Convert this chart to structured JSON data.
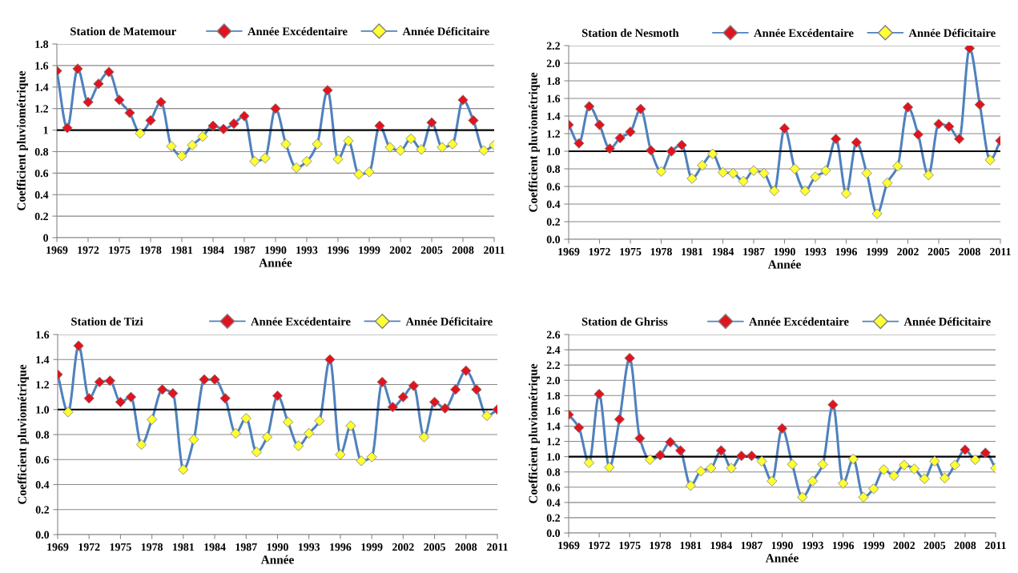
{
  "chart_data": [
    {
      "type": "line",
      "title": "Station de Matemour",
      "xlabel": "Année",
      "ylabel": "Coefficient pluviométrique",
      "marker": "diamond",
      "grid": "y",
      "legend": "top",
      "x": [
        1969,
        1970,
        1971,
        1972,
        1973,
        1974,
        1975,
        1976,
        1977,
        1978,
        1979,
        1980,
        1981,
        1982,
        1983,
        1984,
        1985,
        1986,
        1987,
        1988,
        1989,
        1990,
        1991,
        1992,
        1993,
        1994,
        1995,
        1996,
        1997,
        1998,
        1999,
        2000,
        2001,
        2002,
        2003,
        2004,
        2005,
        2006,
        2007,
        2008,
        2009,
        2010,
        2011
      ],
      "xlim": [
        1969,
        2011
      ],
      "xticks": [
        1969,
        1972,
        1975,
        1978,
        1981,
        1984,
        1987,
        1990,
        1993,
        1996,
        1999,
        2002,
        2005,
        2008,
        2011
      ],
      "ylim": [
        0,
        1.8
      ],
      "yticks": [
        0,
        0.2,
        0.4,
        0.6,
        0.8,
        1,
        1.2,
        1.4,
        1.6,
        1.8
      ],
      "ref_lines": [
        {
          "axis": "y",
          "value": 1,
          "color": "#000000"
        }
      ],
      "series": [
        {
          "marker": "none",
          "color": "#4f81bd",
          "values": [
            1.55,
            1.02,
            1.57,
            1.26,
            1.43,
            1.54,
            1.28,
            1.16,
            0.97,
            1.09,
            1.26,
            0.85,
            0.76,
            0.86,
            0.94,
            1.04,
            1.01,
            1.06,
            1.13,
            0.71,
            0.74,
            1.2,
            0.87,
            0.65,
            0.71,
            0.87,
            1.37,
            0.73,
            0.9,
            0.59,
            0.61,
            1.04,
            0.84,
            0.81,
            0.92,
            0.82,
            1.07,
            0.84,
            0.87,
            1.28,
            1.09,
            0.81,
            0.86
          ]
        },
        {
          "type": "scatter",
          "name": "Année Excédentaire",
          "color": "#e0141e",
          "values": [
            1.55,
            1.02,
            1.57,
            1.26,
            1.43,
            1.54,
            1.28,
            1.16,
            null,
            1.09,
            1.26,
            null,
            null,
            null,
            null,
            1.04,
            1.01,
            1.06,
            1.13,
            null,
            null,
            1.2,
            null,
            null,
            null,
            null,
            1.37,
            null,
            null,
            null,
            null,
            1.04,
            null,
            null,
            null,
            null,
            1.07,
            null,
            null,
            1.28,
            1.09,
            null,
            null
          ]
        },
        {
          "type": "scatter",
          "name": "Année Déficitaire",
          "color": "#ffff33",
          "values": [
            null,
            null,
            null,
            null,
            null,
            null,
            null,
            null,
            0.97,
            null,
            null,
            0.85,
            0.76,
            0.86,
            0.94,
            null,
            null,
            null,
            null,
            0.71,
            0.74,
            null,
            0.87,
            0.65,
            0.71,
            0.87,
            null,
            0.73,
            0.9,
            0.59,
            0.61,
            null,
            0.84,
            0.81,
            0.92,
            0.82,
            null,
            0.84,
            0.87,
            null,
            null,
            0.81,
            0.86
          ]
        }
      ]
    },
    {
      "type": "line",
      "title": "Station de Nesmoth",
      "xlabel": "Année",
      "ylabel": "Coefficient pluviométrique",
      "marker": "diamond",
      "grid": "y",
      "legend": "top",
      "x": [
        1969,
        1970,
        1971,
        1972,
        1973,
        1974,
        1975,
        1976,
        1977,
        1978,
        1979,
        1980,
        1981,
        1982,
        1983,
        1984,
        1985,
        1986,
        1987,
        1988,
        1989,
        1990,
        1991,
        1992,
        1993,
        1994,
        1995,
        1996,
        1997,
        1998,
        1999,
        2000,
        2001,
        2002,
        2003,
        2004,
        2005,
        2006,
        2007,
        2008,
        2009,
        2010,
        2011
      ],
      "xlim": [
        1969,
        2011
      ],
      "xticks": [
        1969,
        1972,
        1975,
        1978,
        1981,
        1984,
        1987,
        1990,
        1993,
        1996,
        1999,
        2002,
        2005,
        2008,
        2011
      ],
      "ylim": [
        0,
        2.2
      ],
      "yticks": [
        {
          "value": 0,
          "label": "0.0"
        },
        0.2,
        0.4,
        0.6,
        0.8,
        {
          "value": 1,
          "label": "1.0"
        },
        1.2,
        1.4,
        1.6,
        1.8,
        {
          "value": 2,
          "label": "2.0"
        },
        2.2
      ],
      "ref_lines": [
        {
          "axis": "y",
          "value": 1,
          "color": "#000000"
        }
      ],
      "series": [
        {
          "marker": "none",
          "color": "#4f81bd",
          "values": [
            1.3,
            1.09,
            1.51,
            1.3,
            1.03,
            1.15,
            1.22,
            1.48,
            1.01,
            0.77,
            1.0,
            1.07,
            0.69,
            0.84,
            0.97,
            0.76,
            0.75,
            0.66,
            0.78,
            0.75,
            0.55,
            1.26,
            0.8,
            0.55,
            0.71,
            0.78,
            1.14,
            0.52,
            1.1,
            0.75,
            0.29,
            0.64,
            0.83,
            1.5,
            1.19,
            0.73,
            1.31,
            1.28,
            1.14,
            2.17,
            1.53,
            0.9,
            1.12
          ]
        },
        {
          "type": "scatter",
          "name": "Année Excédentaire",
          "color": "#e0141e",
          "values": [
            1.3,
            1.09,
            1.51,
            1.3,
            1.03,
            1.15,
            1.22,
            1.48,
            1.01,
            null,
            1.0,
            1.07,
            null,
            null,
            null,
            null,
            null,
            null,
            null,
            null,
            null,
            1.26,
            null,
            null,
            null,
            null,
            1.14,
            null,
            1.1,
            null,
            null,
            null,
            null,
            1.5,
            1.19,
            null,
            1.31,
            1.28,
            1.14,
            2.17,
            1.53,
            null,
            1.12
          ]
        },
        {
          "type": "scatter",
          "name": "Année Déficitaire",
          "color": "#ffff33",
          "values": [
            null,
            null,
            null,
            null,
            null,
            null,
            null,
            null,
            null,
            0.77,
            null,
            null,
            0.69,
            0.84,
            0.97,
            0.76,
            0.75,
            0.66,
            0.78,
            0.75,
            0.55,
            null,
            0.8,
            0.55,
            0.71,
            0.78,
            null,
            0.52,
            null,
            0.75,
            0.29,
            0.64,
            0.83,
            null,
            null,
            0.73,
            null,
            null,
            null,
            null,
            null,
            0.9,
            null
          ]
        }
      ]
    },
    {
      "type": "line",
      "title": "Station de Tizi",
      "xlabel": "Année",
      "ylabel": "Coefficient pluviométrique",
      "marker": "diamond",
      "grid": "y",
      "legend": "top",
      "x": [
        1969,
        1970,
        1971,
        1972,
        1973,
        1974,
        1975,
        1976,
        1977,
        1978,
        1979,
        1980,
        1981,
        1982,
        1983,
        1984,
        1985,
        1986,
        1987,
        1988,
        1989,
        1990,
        1991,
        1992,
        1993,
        1994,
        1995,
        1996,
        1997,
        1998,
        1999,
        2000,
        2001,
        2002,
        2003,
        2004,
        2005,
        2006,
        2007,
        2008,
        2009,
        2010,
        2011
      ],
      "xlim": [
        1969,
        2011
      ],
      "xticks": [
        1969,
        1972,
        1975,
        1978,
        1981,
        1984,
        1987,
        1990,
        1993,
        1996,
        1999,
        2002,
        2005,
        2008,
        2011
      ],
      "ylim": [
        0,
        1.6
      ],
      "yticks": [
        {
          "value": 0,
          "label": "0.0"
        },
        0.2,
        0.4,
        0.6,
        0.8,
        {
          "value": 1,
          "label": "1.0"
        },
        1.2,
        1.4,
        1.6
      ],
      "ref_lines": [
        {
          "axis": "y",
          "value": 1,
          "color": "#000000"
        }
      ],
      "series": [
        {
          "marker": "none",
          "color": "#4f81bd",
          "values": [
            1.28,
            0.98,
            1.51,
            1.09,
            1.22,
            1.23,
            1.06,
            1.1,
            0.72,
            0.92,
            1.16,
            1.13,
            0.52,
            0.76,
            1.24,
            1.24,
            1.09,
            0.81,
            0.93,
            0.66,
            0.78,
            1.11,
            0.9,
            0.71,
            0.81,
            0.91,
            1.4,
            0.64,
            0.87,
            0.59,
            0.62,
            1.22,
            1.02,
            1.1,
            1.19,
            0.78,
            1.06,
            1.01,
            1.16,
            1.31,
            1.16,
            0.95,
            1.0
          ]
        },
        {
          "type": "scatter",
          "name": "Année Excédentaire",
          "color": "#e0141e",
          "values": [
            1.28,
            null,
            1.51,
            1.09,
            1.22,
            1.23,
            1.06,
            1.1,
            null,
            null,
            1.16,
            1.13,
            null,
            null,
            1.24,
            1.24,
            1.09,
            null,
            null,
            null,
            null,
            1.11,
            null,
            null,
            null,
            null,
            1.4,
            null,
            null,
            null,
            null,
            1.22,
            1.02,
            1.1,
            1.19,
            null,
            1.06,
            1.01,
            1.16,
            1.31,
            1.16,
            null,
            1.0
          ]
        },
        {
          "type": "scatter",
          "name": "Année Déficitaire",
          "color": "#ffff33",
          "values": [
            null,
            0.98,
            null,
            null,
            null,
            null,
            null,
            null,
            0.72,
            0.92,
            null,
            null,
            0.52,
            0.76,
            null,
            null,
            null,
            0.81,
            0.93,
            0.66,
            0.78,
            null,
            0.9,
            0.71,
            0.81,
            0.91,
            null,
            0.64,
            0.87,
            0.59,
            0.62,
            null,
            null,
            null,
            null,
            0.78,
            null,
            null,
            null,
            null,
            null,
            0.95,
            null
          ]
        }
      ]
    },
    {
      "type": "line",
      "title": "Station de Ghriss",
      "xlabel": "Année",
      "ylabel": "Coefficient pluviométrique",
      "marker": "diamond",
      "grid": "y",
      "legend": "top",
      "x": [
        1969,
        1970,
        1971,
        1972,
        1973,
        1974,
        1975,
        1976,
        1977,
        1978,
        1979,
        1980,
        1981,
        1982,
        1983,
        1984,
        1985,
        1986,
        1987,
        1988,
        1989,
        1990,
        1991,
        1992,
        1993,
        1994,
        1995,
        1996,
        1997,
        1998,
        1999,
        2000,
        2001,
        2002,
        2003,
        2004,
        2005,
        2006,
        2007,
        2008,
        2009,
        2010,
        2011
      ],
      "xlim": [
        1969,
        2011
      ],
      "xticks": [
        1969,
        1972,
        1975,
        1978,
        1981,
        1984,
        1987,
        1990,
        1993,
        1996,
        1999,
        2002,
        2005,
        2008,
        2011
      ],
      "ylim": [
        0,
        2.6
      ],
      "yticks": [
        {
          "value": 0,
          "label": "0.0"
        },
        0.2,
        0.4,
        0.6,
        0.8,
        {
          "value": 1,
          "label": "1.0"
        },
        1.2,
        1.4,
        1.6,
        1.8,
        {
          "value": 2,
          "label": "2.0"
        },
        2.2,
        2.4,
        2.6
      ],
      "ref_lines": [
        {
          "axis": "y",
          "value": 1,
          "color": "#000000"
        }
      ],
      "series": [
        {
          "marker": "none",
          "color": "#4f81bd",
          "values": [
            1.55,
            1.38,
            0.92,
            1.82,
            0.86,
            1.49,
            2.29,
            1.24,
            0.96,
            1.02,
            1.19,
            1.08,
            0.62,
            0.81,
            0.85,
            1.08,
            0.85,
            1.01,
            1.01,
            0.94,
            0.68,
            1.37,
            0.9,
            0.47,
            0.68,
            0.9,
            1.68,
            0.65,
            0.97,
            0.47,
            0.58,
            0.83,
            0.75,
            0.89,
            0.84,
            0.71,
            0.94,
            0.72,
            0.89,
            1.09,
            0.96,
            1.05,
            0.85
          ]
        },
        {
          "type": "scatter",
          "name": "Année Excédentaire",
          "color": "#e0141e",
          "values": [
            1.55,
            1.38,
            null,
            1.82,
            null,
            1.49,
            2.29,
            1.24,
            null,
            1.02,
            1.19,
            1.08,
            null,
            null,
            null,
            1.08,
            null,
            1.01,
            1.01,
            null,
            null,
            1.37,
            null,
            null,
            null,
            null,
            1.68,
            null,
            null,
            null,
            null,
            null,
            null,
            null,
            null,
            null,
            null,
            null,
            null,
            1.09,
            null,
            1.05,
            null
          ]
        },
        {
          "type": "scatter",
          "name": "Année Déficitaire",
          "color": "#ffff33",
          "values": [
            null,
            null,
            0.92,
            null,
            0.86,
            null,
            null,
            null,
            0.96,
            null,
            null,
            null,
            0.62,
            0.81,
            0.85,
            null,
            0.85,
            null,
            null,
            0.94,
            0.68,
            null,
            0.9,
            0.47,
            0.68,
            0.9,
            null,
            0.65,
            0.97,
            0.47,
            0.58,
            0.83,
            0.75,
            0.89,
            0.84,
            0.71,
            0.94,
            0.72,
            0.89,
            null,
            0.96,
            null,
            0.85
          ]
        }
      ]
    }
  ]
}
